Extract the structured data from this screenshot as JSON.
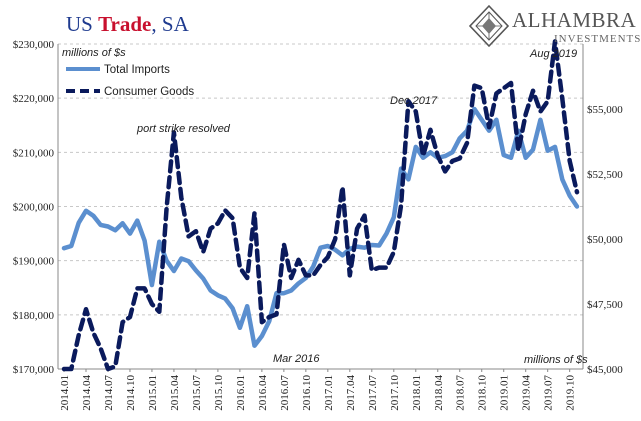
{
  "header": {
    "title_part1": "US ",
    "title_part2": "Trade",
    "title_part3": ", SA"
  },
  "logo": {
    "name": "ALHAMBRA",
    "sub": "INVESTMENTS",
    "icon": "alhambra-diamond-logo"
  },
  "chart_data": {
    "type": "line",
    "title": "US Trade, SA",
    "x": [
      "2014.01",
      "2014.02",
      "2014.03",
      "2014.04",
      "2014.05",
      "2014.06",
      "2014.07",
      "2014.08",
      "2014.09",
      "2014.10",
      "2014.11",
      "2014.12",
      "2015.01",
      "2015.02",
      "2015.03",
      "2015.04",
      "2015.05",
      "2015.06",
      "2015.07",
      "2015.08",
      "2015.09",
      "2015.10",
      "2015.11",
      "2015.12",
      "2016.01",
      "2016.02",
      "2016.03",
      "2016.04",
      "2016.05",
      "2016.06",
      "2016.07",
      "2016.08",
      "2016.09",
      "2016.10",
      "2016.11",
      "2016.12",
      "2017.01",
      "2017.02",
      "2017.03",
      "2017.04",
      "2017.05",
      "2017.06",
      "2017.07",
      "2017.08",
      "2017.09",
      "2017.10",
      "2017.11",
      "2017.12",
      "2018.01",
      "2018.02",
      "2018.03",
      "2018.04",
      "2018.05",
      "2018.06",
      "2018.07",
      "2018.08",
      "2018.09",
      "2018.10",
      "2018.11",
      "2018.12",
      "2019.01",
      "2019.02",
      "2019.03",
      "2019.04",
      "2019.05",
      "2019.06",
      "2019.07",
      "2019.08",
      "2019.09",
      "2019.10",
      "2019.11"
    ],
    "x_tick_labels": [
      "2014.01",
      "2014.04",
      "2014.07",
      "2014.10",
      "2015.01",
      "2015.04",
      "2015.07",
      "2015.10",
      "2016.01",
      "2016.04",
      "2016.07",
      "2016.10",
      "2017.01",
      "2017.04",
      "2017.07",
      "2017.10",
      "2018.01",
      "2018.04",
      "2018.07",
      "2018.10",
      "2019.01",
      "2019.04",
      "2019.07",
      "2019.10"
    ],
    "y_left": {
      "label": "millions of $s",
      "ylim": [
        170000,
        230000
      ],
      "tick_labels": [
        "$170,000",
        "$180,000",
        "$190,000",
        "$200,000",
        "$210,000",
        "$220,000",
        "$230,000"
      ]
    },
    "y_right": {
      "label": "millions of $s",
      "ylim": [
        45000,
        57500
      ],
      "tick_labels": [
        "$45,000",
        "$47,500",
        "$50,000",
        "$52,500",
        "$55,000"
      ]
    },
    "grid": true,
    "legend_position": "top-left",
    "series": [
      {
        "name": "Total Imports",
        "axis": "left",
        "color": "#5b8fcf",
        "style": "solid",
        "values": [
          192300,
          192700,
          197000,
          199200,
          198300,
          196600,
          196300,
          195600,
          196900,
          195000,
          197400,
          193700,
          185500,
          193500,
          190000,
          188100,
          190400,
          189900,
          188200,
          186700,
          184500,
          183600,
          183000,
          181200,
          177600,
          181600,
          174300,
          176100,
          178800,
          184000,
          184000,
          184500,
          185800,
          186800,
          188900,
          192400,
          192700,
          192000,
          191000,
          192200,
          192600,
          192400,
          192900,
          192800,
          195000,
          198000,
          207000,
          205000,
          211000,
          209000,
          210000,
          209000,
          209300,
          210000,
          212600,
          214000,
          218000,
          216000,
          214000,
          216000,
          209500,
          209000,
          214000,
          209000,
          210500,
          216000,
          210300,
          211000,
          205000,
          202000,
          200000
        ]
      },
      {
        "name": "Consumer Goods",
        "axis": "right",
        "color": "#0a1a5c",
        "style": "dashed",
        "values": [
          45000,
          45000,
          46300,
          47300,
          46400,
          45800,
          45000,
          45100,
          46800,
          47000,
          48100,
          48100,
          47500,
          47200,
          51200,
          54100,
          51600,
          50100,
          50300,
          49500,
          50400,
          50600,
          51100,
          50800,
          48900,
          48500,
          51000,
          46800,
          47000,
          47100,
          49800,
          48500,
          49200,
          48600,
          48600,
          49000,
          49300,
          50000,
          52000,
          48600,
          50400,
          50900,
          48800,
          48900,
          48900,
          49500,
          51300,
          55300,
          54900,
          53200,
          54200,
          53200,
          52600,
          53000,
          53100,
          53700,
          55900,
          55800,
          54300,
          55600,
          55800,
          56000,
          53400,
          54800,
          55700,
          54900,
          55300,
          57600,
          55400,
          53000,
          51800
        ]
      }
    ],
    "annotations": [
      {
        "text": "port strike resolved"
      },
      {
        "text": "Mar 2016"
      },
      {
        "text": "Dec 2017"
      },
      {
        "text": "Aug 2019"
      }
    ]
  }
}
